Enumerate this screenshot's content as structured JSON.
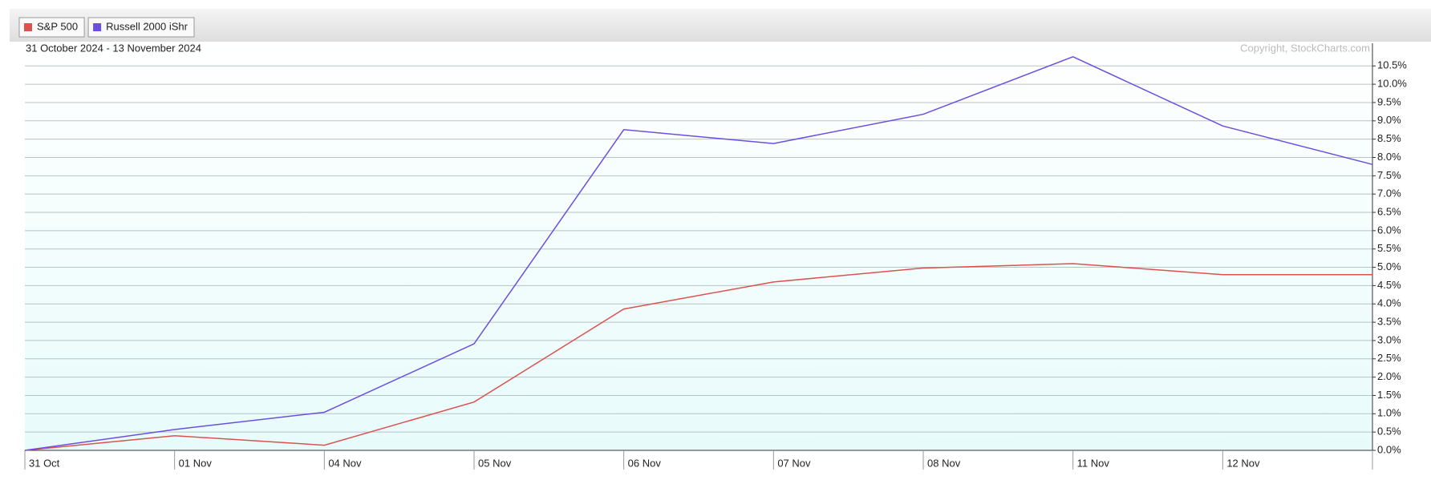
{
  "chart_data": {
    "type": "line",
    "subtitle": "31 October 2024 - 13 November 2024",
    "annotation": "Copyright, StockCharts.com",
    "categories": [
      "31 Oct",
      "01 Nov",
      "04 Nov",
      "05 Nov",
      "06 Nov",
      "07 Nov",
      "08 Nov",
      "11 Nov",
      "12 Nov",
      null
    ],
    "series": [
      {
        "name": "S&P 500",
        "color": "#d9534f",
        "values": [
          0,
          0.4,
          0.14,
          1.32,
          3.86,
          4.6,
          4.98,
          5.1,
          4.8,
          4.8
        ]
      },
      {
        "name": "Russell 2000 iShr",
        "color": "#6a4fe0",
        "values": [
          0,
          0.57,
          1.04,
          2.91,
          8.76,
          8.38,
          9.18,
          10.75,
          8.86,
          7.81
        ]
      }
    ],
    "ylim": [
      0,
      10.9
    ],
    "yticks": [
      {
        "value": 0,
        "label": "0.0%"
      },
      {
        "value": 0.5,
        "label": "0.5%"
      },
      {
        "value": 1,
        "label": "1.0%"
      },
      {
        "value": 1.5,
        "label": "1.5%"
      },
      {
        "value": 2,
        "label": "2.0%"
      },
      {
        "value": 2.5,
        "label": "2.5%"
      },
      {
        "value": 3,
        "label": "3.0%"
      },
      {
        "value": 3.5,
        "label": "3.5%"
      },
      {
        "value": 4,
        "label": "4.0%"
      },
      {
        "value": 4.5,
        "label": "4.5%"
      },
      {
        "value": 5,
        "label": "5.0%"
      },
      {
        "value": 5.5,
        "label": "5.5%"
      },
      {
        "value": 6,
        "label": "6.0%"
      },
      {
        "value": 6.5,
        "label": "6.5%"
      },
      {
        "value": 7,
        "label": "7.0%"
      },
      {
        "value": 7.5,
        "label": "7.5%"
      },
      {
        "value": 8,
        "label": "8.0%"
      },
      {
        "value": 8.5,
        "label": "8.5%"
      },
      {
        "value": 9,
        "label": "9.0%"
      },
      {
        "value": 9.5,
        "label": "9.5%"
      },
      {
        "value": 10,
        "label": "10.0%"
      },
      {
        "value": 10.5,
        "label": "10.5%"
      }
    ],
    "grid": true
  }
}
